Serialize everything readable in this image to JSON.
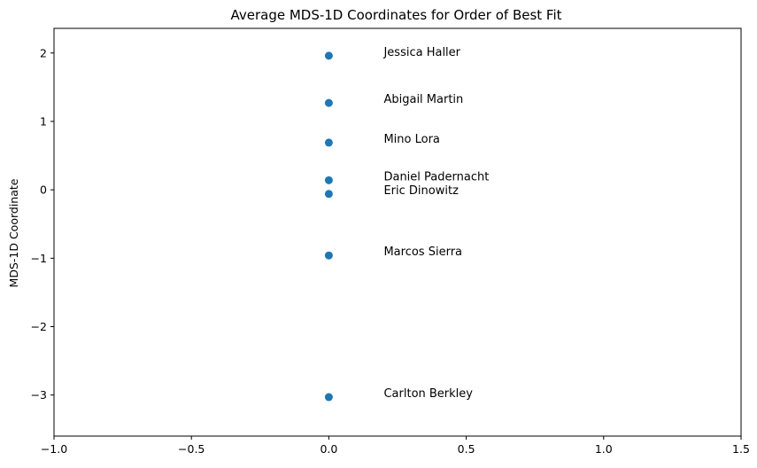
{
  "chart_data": {
    "type": "scatter",
    "title": "Average MDS-1D Coordinates for Order of Best Fit",
    "xlabel": "",
    "ylabel": "MDS-1D Coordinate",
    "xlim": [
      -1.0,
      1.5
    ],
    "ylim": [
      -3.6,
      2.36
    ],
    "xticks": [
      {
        "value": -1.0,
        "label": "−1.0"
      },
      {
        "value": -0.5,
        "label": "−0.5"
      },
      {
        "value": 0.0,
        "label": "0.0"
      },
      {
        "value": 0.5,
        "label": "0.5"
      },
      {
        "value": 1.0,
        "label": "1.0"
      },
      {
        "value": 1.5,
        "label": "1.5"
      }
    ],
    "yticks": [
      {
        "value": 2,
        "label": "2"
      },
      {
        "value": 1,
        "label": "1"
      },
      {
        "value": 0,
        "label": "0"
      },
      {
        "value": -1,
        "label": "−1"
      },
      {
        "value": -2,
        "label": "−2"
      },
      {
        "value": -3,
        "label": "−3"
      }
    ],
    "grid": false,
    "point_color": "#1f77b4",
    "points": [
      {
        "name": "Jessica Haller",
        "x": 0.0,
        "y": 1.96
      },
      {
        "name": "Abigail Martin",
        "x": 0.0,
        "y": 1.27
      },
      {
        "name": "Mino Lora",
        "x": 0.0,
        "y": 0.69
      },
      {
        "name": "Daniel Padernacht",
        "x": 0.0,
        "y": 0.14
      },
      {
        "name": "Eric Dinowitz",
        "x": 0.0,
        "y": -0.06
      },
      {
        "name": "Marcos Sierra",
        "x": 0.0,
        "y": -0.96
      },
      {
        "name": "Carlton Berkley",
        "x": 0.0,
        "y": -3.03
      }
    ]
  }
}
